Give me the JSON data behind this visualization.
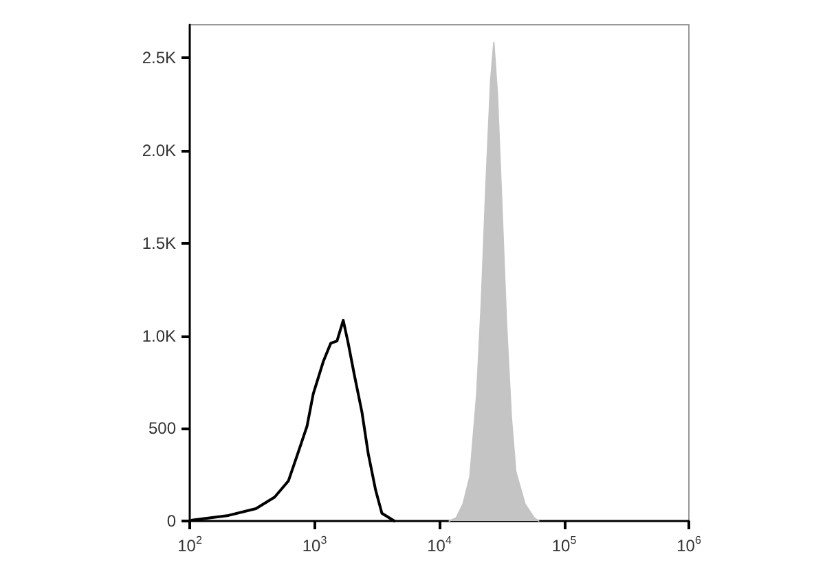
{
  "chart_data": {
    "type": "line",
    "log": "x",
    "xlim": [
      100,
      1000000
    ],
    "ylim": [
      0,
      2680
    ],
    "xticks": [
      {
        "value": 100,
        "label": "10$^{2}$"
      },
      {
        "value": 1000,
        "label": "10$^{3}$"
      },
      {
        "value": 10000,
        "label": "10$^{4}$"
      },
      {
        "value": 100000,
        "label": "10$^{5}$"
      },
      {
        "value": 1000000,
        "label": "10$^{6}$"
      }
    ],
    "yticks": [
      0,
      500,
      {
        "value": 1000,
        "label": "1.0K"
      },
      {
        "value": 1500,
        "label": "1.5K"
      },
      {
        "value": 2000,
        "label": "2.0K"
      },
      {
        "value": 2500,
        "label": "2.5K"
      }
    ],
    "grid": false,
    "marker": "none",
    "line_style": "solid",
    "series": [
      {
        "type": "area",
        "color": "#c4c4c4",
        "x": [
          12020,
          13650,
          15490,
          17580,
          19950,
          21720,
          23600,
          25760,
          27350,
          29240,
          31840,
          34600,
          37760,
          41020,
          48640,
          57540,
          62660
        ],
        "values": [
          0,
          17,
          92,
          240,
          687,
          1183,
          1803,
          2374,
          2584,
          2299,
          1679,
          1059,
          563,
          266,
          92,
          17,
          0
        ]
      },
      {
        "color": "#000000",
        "x": [
          104,
          204,
          339,
          479,
          617,
          724,
          871,
          977,
          1175,
          1349,
          1514,
          1698,
          1862,
          2089,
          2399,
          2692,
          3090,
          3467,
          4365
        ],
        "values": [
          5,
          30,
          67,
          129,
          216,
          352,
          513,
          687,
          861,
          960,
          972,
          1084,
          960,
          786,
          588,
          365,
          166,
          42,
          0
        ]
      }
    ]
  }
}
